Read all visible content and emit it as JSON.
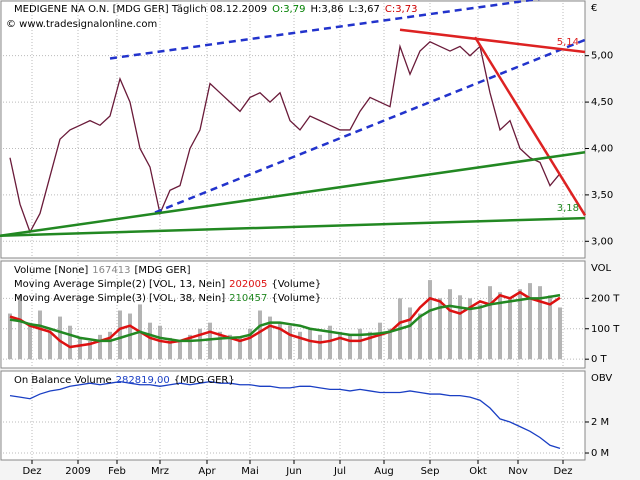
{
  "chart_data": [
    {
      "type": "line",
      "title": "MEDIGENE NA O.N. [MDG GER]  Täglich  08.12.2009",
      "quote": [
        {
          "text": "O:3,79",
          "color": "#008000"
        },
        {
          "text": "H:3,86",
          "color": "#000000"
        },
        {
          "text": "L:3,67",
          "color": "#000000"
        },
        {
          "text": "C:3,73",
          "color": "#cc0000"
        }
      ],
      "source": "© www.tradesignalonline.com",
      "unit": "€",
      "color": "#6a1b3a",
      "x": [
        0,
        1,
        2,
        3,
        4,
        5,
        6,
        7,
        8,
        9,
        10,
        11,
        12,
        13,
        14,
        15,
        16,
        17,
        18,
        19,
        20,
        21,
        22,
        23,
        24,
        25,
        26,
        27,
        28,
        29,
        30,
        31,
        32,
        33,
        34,
        35,
        36,
        37,
        38,
        39,
        40,
        41,
        42,
        43,
        44,
        45,
        46,
        47,
        48,
        49,
        50,
        51,
        52,
        53,
        54,
        55
      ],
      "values": [
        3.9,
        3.4,
        3.1,
        3.3,
        3.7,
        4.1,
        4.2,
        4.25,
        4.3,
        4.25,
        4.35,
        4.75,
        4.5,
        4.0,
        3.8,
        3.3,
        3.55,
        3.6,
        4.0,
        4.2,
        4.7,
        4.6,
        4.5,
        4.4,
        4.55,
        4.6,
        4.5,
        4.6,
        4.3,
        4.2,
        4.35,
        4.3,
        4.25,
        4.2,
        4.2,
        4.4,
        4.55,
        4.5,
        4.45,
        5.1,
        4.8,
        5.05,
        5.15,
        5.1,
        5.05,
        5.1,
        5.0,
        5.1,
        4.6,
        4.2,
        4.3,
        4.0,
        3.9,
        3.85,
        3.6,
        3.73
      ],
      "xlim": [
        -1,
        57.5
      ],
      "ylim": [
        2.82,
        5.6
      ],
      "grid": true,
      "yticks": [
        {
          "value": 3,
          "label": "3,00"
        },
        {
          "value": 3.5,
          "label": "3,50"
        },
        {
          "value": 4,
          "label": "4,00"
        },
        {
          "value": 4.5,
          "label": "4,50"
        },
        {
          "value": 5,
          "label": "5,00"
        }
      ],
      "trendlines": [
        {
          "x": [
            10,
            57.5
          ],
          "values": [
            4.97,
            5.68
          ],
          "color": "#2233cc",
          "dashed": true
        },
        {
          "x": [
            14.5,
            57.5
          ],
          "values": [
            3.31,
            5.17
          ],
          "color": "#2233cc",
          "dashed": true
        },
        {
          "x": [
            39,
            57.5
          ],
          "values": [
            5.28,
            5.04
          ],
          "color": "#dd2222",
          "dashed": false,
          "label": "5,14"
        },
        {
          "x": [
            46.5,
            57.5
          ],
          "values": [
            5.2,
            3.28
          ],
          "color": "#dd2222",
          "dashed": false
        },
        {
          "x": [
            -1,
            57.5
          ],
          "values": [
            3.06,
            3.96
          ],
          "color": "#228822",
          "dashed": false
        },
        {
          "x": [
            -1,
            57.5
          ],
          "values": [
            3.06,
            3.25
          ],
          "color": "#228822",
          "dashed": false,
          "label": "3,18"
        }
      ]
    },
    {
      "type": "volume",
      "axis_label": "VOL",
      "x": [
        0,
        1,
        2,
        3,
        4,
        5,
        6,
        7,
        8,
        9,
        10,
        11,
        12,
        13,
        14,
        15,
        16,
        17,
        18,
        19,
        20,
        21,
        22,
        23,
        24,
        25,
        26,
        27,
        28,
        29,
        30,
        31,
        32,
        33,
        34,
        35,
        36,
        37,
        38,
        39,
        40,
        41,
        42,
        43,
        44,
        45,
        46,
        47,
        48,
        49,
        50,
        51,
        52,
        53,
        54,
        55
      ],
      "xlim": [
        -1,
        57.5
      ],
      "ylim": [
        -29000,
        326000
      ],
      "grid": true,
      "yticks": [
        {
          "value": 0,
          "label": "0 T"
        },
        {
          "value": 100000,
          "label": "100 T"
        },
        {
          "value": 200000,
          "label": "200 T"
        }
      ],
      "series": [
        {
          "name": "Volume [None]",
          "legend_value": "167413",
          "source": "[MDG GER]",
          "color": "#b4b4b4",
          "style": "bars",
          "values": [
            150000,
            210000,
            120000,
            160000,
            90000,
            140000,
            110000,
            70000,
            60000,
            80000,
            90000,
            160000,
            150000,
            180000,
            120000,
            110000,
            70000,
            60000,
            80000,
            100000,
            120000,
            90000,
            80000,
            70000,
            100000,
            160000,
            140000,
            120000,
            110000,
            90000,
            100000,
            80000,
            110000,
            90000,
            80000,
            100000,
            90000,
            120000,
            100000,
            200000,
            170000,
            150000,
            260000,
            200000,
            230000,
            210000,
            200000,
            180000,
            240000,
            220000,
            200000,
            230000,
            250000,
            240000,
            210000,
            170000
          ]
        },
        {
          "name": "Moving Average Simple(2) [VOL, 13, Nein]",
          "legend_value": "202005",
          "source": "{Volume}",
          "color": "#dd1111",
          "style": "line",
          "values": [
            140000,
            130000,
            110000,
            100000,
            90000,
            60000,
            40000,
            45000,
            50000,
            60000,
            70000,
            100000,
            110000,
            90000,
            70000,
            60000,
            55000,
            60000,
            70000,
            80000,
            90000,
            80000,
            70000,
            60000,
            70000,
            90000,
            110000,
            100000,
            80000,
            70000,
            60000,
            55000,
            60000,
            70000,
            60000,
            60000,
            70000,
            80000,
            90000,
            120000,
            130000,
            170000,
            200000,
            190000,
            160000,
            150000,
            170000,
            190000,
            180000,
            210000,
            200000,
            220000,
            200000,
            190000,
            180000,
            202005
          ]
        },
        {
          "name": "Moving Average Simple(3) [VOL, 38, Nein]",
          "legend_value": "210457",
          "source": "{Volume}",
          "color": "#228822",
          "style": "line",
          "values": [
            130000,
            125000,
            115000,
            110000,
            100000,
            90000,
            80000,
            70000,
            65000,
            60000,
            60000,
            70000,
            80000,
            90000,
            80000,
            70000,
            65000,
            60000,
            60000,
            62000,
            65000,
            68000,
            70000,
            72000,
            80000,
            110000,
            120000,
            120000,
            115000,
            110000,
            100000,
            95000,
            90000,
            85000,
            80000,
            80000,
            82000,
            85000,
            90000,
            100000,
            110000,
            140000,
            160000,
            170000,
            175000,
            170000,
            165000,
            170000,
            180000,
            185000,
            190000,
            195000,
            200000,
            200000,
            205000,
            210457
          ]
        }
      ]
    },
    {
      "type": "line",
      "axis_label": "OBV",
      "color": "#1a3fc4",
      "legend": {
        "name": "On Balance Volume",
        "legend_value": "282819,00",
        "source": "{MDG GER}"
      },
      "x": [
        0,
        1,
        2,
        3,
        4,
        5,
        6,
        7,
        8,
        9,
        10,
        11,
        12,
        13,
        14,
        15,
        16,
        17,
        18,
        19,
        20,
        21,
        22,
        23,
        24,
        25,
        26,
        27,
        28,
        29,
        30,
        31,
        32,
        33,
        34,
        35,
        36,
        37,
        38,
        39,
        40,
        41,
        42,
        43,
        44,
        45,
        46,
        47,
        48,
        49,
        50,
        51,
        52,
        53,
        54,
        55
      ],
      "values": [
        3.7,
        3.6,
        3.5,
        3.8,
        4.0,
        4.1,
        4.3,
        4.4,
        4.5,
        4.4,
        4.5,
        4.6,
        4.5,
        4.4,
        4.4,
        4.3,
        4.4,
        4.5,
        4.4,
        4.5,
        4.6,
        4.5,
        4.5,
        4.4,
        4.4,
        4.3,
        4.3,
        4.2,
        4.2,
        4.3,
        4.3,
        4.2,
        4.1,
        4.1,
        4.0,
        4.1,
        4.0,
        3.9,
        3.9,
        3.9,
        4.0,
        3.9,
        3.8,
        3.8,
        3.7,
        3.7,
        3.6,
        3.4,
        2.9,
        2.2,
        2.0,
        1.7,
        1.4,
        1.0,
        0.5,
        0.3
      ],
      "xlim": [
        -1,
        57.5
      ],
      "ylim": [
        -0.45,
        5.35
      ],
      "grid": true,
      "yticks": [
        {
          "value": 0,
          "label": "0 M"
        },
        {
          "value": 2,
          "label": "2 M"
        }
      ],
      "xticks": [
        {
          "value": 2.2,
          "label": "Dez"
        },
        {
          "value": 6.8,
          "label": "2009"
        },
        {
          "value": 10.7,
          "label": "Feb"
        },
        {
          "value": 15,
          "label": "Mrz"
        },
        {
          "value": 19.7,
          "label": "Apr"
        },
        {
          "value": 24,
          "label": "Mai"
        },
        {
          "value": 28.4,
          "label": "Jun"
        },
        {
          "value": 33,
          "label": "Jul"
        },
        {
          "value": 37.4,
          "label": "Aug"
        },
        {
          "value": 42,
          "label": "Sep"
        },
        {
          "value": 46.8,
          "label": "Okt"
        },
        {
          "value": 50.8,
          "label": "Nov"
        },
        {
          "value": 55.3,
          "label": "Dez"
        }
      ]
    }
  ]
}
